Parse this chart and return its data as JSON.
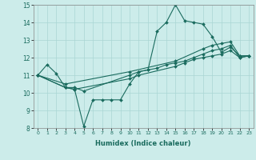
{
  "xlabel": "Humidex (Indice chaleur)",
  "ylabel": "",
  "bg_color": "#ccecea",
  "grid_color": "#aad6d4",
  "line_color": "#1a6b5e",
  "xlim": [
    -0.5,
    23.5
  ],
  "ylim": [
    8,
    15
  ],
  "xticks": [
    0,
    1,
    2,
    3,
    4,
    5,
    6,
    7,
    8,
    9,
    10,
    11,
    12,
    13,
    14,
    15,
    16,
    17,
    18,
    19,
    20,
    21,
    22,
    23
  ],
  "yticks": [
    8,
    9,
    10,
    11,
    12,
    13,
    14,
    15
  ],
  "line1_x": [
    0,
    1,
    2,
    3,
    4,
    5,
    6,
    7,
    8,
    9,
    10,
    11,
    12,
    13,
    14,
    15,
    16,
    17,
    18,
    19,
    20,
    21,
    22,
    23
  ],
  "line1_y": [
    11.0,
    11.6,
    11.1,
    10.3,
    10.2,
    8.1,
    9.6,
    9.6,
    9.6,
    9.6,
    10.5,
    11.2,
    11.3,
    13.5,
    14.0,
    15.0,
    14.1,
    14.0,
    13.9,
    13.2,
    12.3,
    12.6,
    12.1,
    12.1
  ],
  "line2_x": [
    0,
    3,
    4,
    5,
    10,
    11,
    12,
    13,
    14,
    15,
    16,
    17,
    18,
    19,
    20,
    21,
    22,
    23
  ],
  "line2_y": [
    11.0,
    10.3,
    10.3,
    10.1,
    11.0,
    11.2,
    11.3,
    11.4,
    11.6,
    11.7,
    11.8,
    12.0,
    12.2,
    12.4,
    12.5,
    12.7,
    12.0,
    12.1
  ],
  "line3_x": [
    0,
    3,
    4,
    10,
    11,
    15,
    16,
    17,
    18,
    19,
    20,
    21,
    22,
    23
  ],
  "line3_y": [
    11.0,
    10.3,
    10.2,
    10.8,
    11.0,
    11.5,
    11.7,
    11.9,
    12.0,
    12.1,
    12.2,
    12.4,
    12.0,
    12.1
  ],
  "line4_x": [
    0,
    3,
    10,
    15,
    18,
    19,
    20,
    21,
    22,
    23
  ],
  "line4_y": [
    11.0,
    10.5,
    11.2,
    11.8,
    12.5,
    12.7,
    12.8,
    12.9,
    12.1,
    12.1
  ]
}
